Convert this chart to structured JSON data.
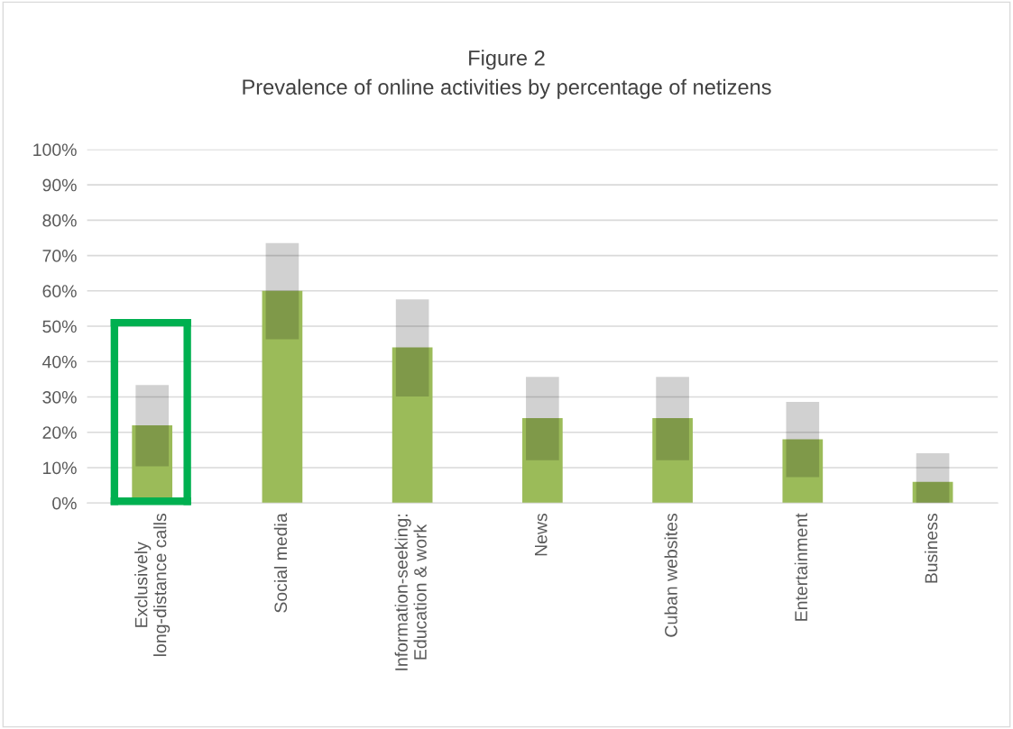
{
  "chart_data": {
    "type": "bar",
    "title": "Figure 2",
    "subtitle": "Prevalence of online activities by percentage of netizens",
    "categories": [
      "Exclusively\nlong-distance calls",
      "Social media",
      "Information-seeking:\nEducation & work",
      "News",
      "Cuban websites",
      "Entertainment",
      "Business"
    ],
    "series": [
      {
        "color": "#9bbb59",
        "values": [
          22,
          60,
          44,
          24,
          24,
          18,
          6
        ]
      },
      {
        "color": "#d1d1d1",
        "base": [
          10.4,
          46.3,
          30.1,
          12.1,
          12.1,
          7.3,
          0
        ],
        "values": [
          23,
          27.2,
          27.5,
          23.6,
          23.6,
          21.3,
          14.1
        ]
      }
    ],
    "ylim": [
      0,
      100
    ],
    "yticks": [
      {
        "value": 0,
        "label": "0%"
      },
      {
        "value": 10,
        "label": "10%"
      },
      {
        "value": 20,
        "label": "20%"
      },
      {
        "value": 30,
        "label": "30%"
      },
      {
        "value": 40,
        "label": "40%"
      },
      {
        "value": 50,
        "label": "50%"
      },
      {
        "value": 60,
        "label": "60%"
      },
      {
        "value": 70,
        "label": "70%"
      },
      {
        "value": 80,
        "label": "80%"
      },
      {
        "value": 90,
        "label": "90%"
      },
      {
        "value": 100,
        "label": "100%"
      }
    ],
    "grid": "y",
    "legend": false
  }
}
